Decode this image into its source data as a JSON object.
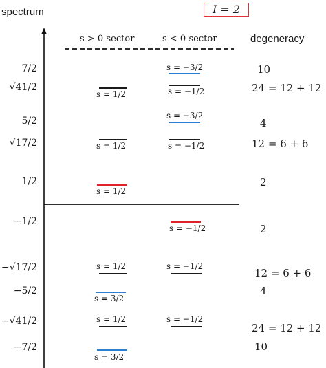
{
  "colors": {
    "line": "#111111",
    "black_level": "#1a1a1a",
    "blue_level": "#2a7fd4",
    "red_level": "#e0232a",
    "box_border": "#e0303a"
  },
  "header": {
    "spectrum_label": "spectrum",
    "i_box": "I = 2",
    "sector_pos": "s > 0-sector",
    "sector_neg": "s < 0-sector",
    "degeneracy_label": "degeneracy"
  },
  "y_labels": [
    "7/2",
    "√41/2",
    "5/2",
    "√17/2",
    "1/2",
    "−1/2",
    "−√17/2",
    "−5/2",
    "−√41/2",
    "−7/2"
  ],
  "degeneracies": [
    "10",
    "24 = 12 + 12",
    "4",
    "12 = 6 + 6",
    "2",
    "2",
    "12 = 6 + 6",
    "4",
    "24 = 12 + 12",
    "10"
  ],
  "s_labels": {
    "r1_neg": "s = −3/2",
    "r2_pos": "s = 1/2",
    "r2_neg": "s = −1/2",
    "r3_neg": "s = −3/2",
    "r4_pos": "s = 1/2",
    "r4_neg": "s = −1/2",
    "r5_pos": "s = 1/2",
    "r6_neg": "s = −1/2",
    "r7_pos": "s = 1/2",
    "r7_neg": "s = −1/2",
    "r8_pos": "s = 3/2",
    "r9_pos": "s = 1/2",
    "r9_neg": "s = −1/2",
    "r10_pos": "s = 3/2"
  }
}
